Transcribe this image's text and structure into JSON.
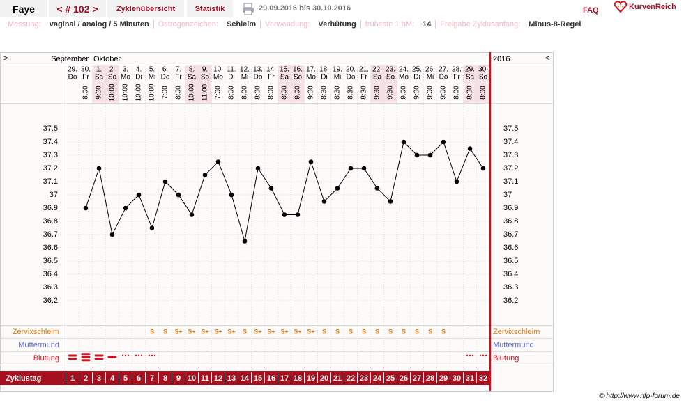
{
  "header": {
    "name": "Faye",
    "cycle": "< # 102 >",
    "nav": [
      "Zyklenübersicht",
      "Statistik"
    ],
    "range": "29.09.2016 bis 30.10.2016",
    "faq": "FAQ",
    "logo": "KurvenReich"
  },
  "info": [
    {
      "label": "Messung:",
      "value": "vaginal / analog / 5 Minuten"
    },
    {
      "label": "Östrogenzeichen:",
      "value": "Schleim"
    },
    {
      "label": "Verwendung:",
      "value": "Verhütung"
    },
    {
      "label": "früheste 1.hM:",
      "value": "14"
    },
    {
      "label": "Freigabe Zyklusanfang:",
      "value": "Minus-8-Regel"
    }
  ],
  "chart_data": {
    "type": "line",
    "months": [
      "September",
      "Oktober"
    ],
    "year": "2016",
    "expand_left": ">",
    "expand_right": "<",
    "categories": [
      "29.",
      "30.",
      "1.",
      "2.",
      "3.",
      "4.",
      "5.",
      "6.",
      "7.",
      "8.",
      "9.",
      "10.",
      "11.",
      "12.",
      "13.",
      "14.",
      "15.",
      "16.",
      "17.",
      "18.",
      "19.",
      "20.",
      "21.",
      "22.",
      "23.",
      "24.",
      "25.",
      "26.",
      "27.",
      "28.",
      "29.",
      "30."
    ],
    "weekdays": [
      "Do",
      "Fr",
      "Sa",
      "So",
      "Mo",
      "Di",
      "Mi",
      "Do",
      "Fr",
      "Sa",
      "So",
      "Mo",
      "Di",
      "Mi",
      "Do",
      "Fr",
      "Sa",
      "So",
      "Mo",
      "Di",
      "Mi",
      "Do",
      "Fr",
      "Sa",
      "So",
      "Mo",
      "Di",
      "Mi",
      "Do",
      "Fr",
      "Sa",
      "So"
    ],
    "highlight_weekdays": [
      "Sa",
      "So"
    ],
    "times": [
      null,
      "8:00",
      "9:00",
      "10:00",
      "10:00",
      "10:00",
      "10:00",
      "7:00",
      "8:00",
      "10:00",
      "11:00",
      "7:00",
      "8:00",
      "8:00",
      "8:00",
      "8:00",
      "8:00",
      "9:00",
      "9:00",
      "8:30",
      "8:30",
      "8:30",
      "8:30",
      "9:30",
      "9:30",
      "9:00",
      "9:00",
      "9:00",
      "9:00",
      "8:00",
      "8:00",
      "8:00"
    ],
    "values": [
      null,
      36.9,
      37.2,
      36.7,
      36.9,
      37.0,
      36.75,
      37.1,
      37.0,
      36.85,
      37.15,
      37.25,
      37.0,
      36.65,
      37.2,
      37.05,
      36.85,
      36.85,
      37.25,
      36.95,
      37.05,
      37.2,
      37.2,
      37.05,
      36.95,
      37.4,
      37.3,
      37.3,
      37.4,
      37.1,
      37.35,
      37.2
    ],
    "color": "#000000",
    "ylim": [
      36.0,
      37.7
    ],
    "yticks": [
      36.2,
      36.3,
      36.4,
      36.5,
      36.6,
      36.7,
      36.8,
      36.9,
      37,
      37.1,
      37.2,
      37.3,
      37.4,
      37.5
    ],
    "grid": true,
    "cervical_mucus": {
      "label": "Zervixschleim",
      "color": "#e07a10",
      "values": [
        null,
        null,
        null,
        null,
        null,
        null,
        "S",
        "S",
        "S+",
        "S+",
        "S+",
        "S+",
        "S+",
        "S",
        "S+",
        "S+",
        "S+",
        "S+",
        "S+",
        "S",
        "S",
        "S",
        "S",
        "S",
        "S",
        "S",
        "S",
        "S",
        "S",
        null,
        null,
        null
      ]
    },
    "cervix": {
      "label": "Muttermund",
      "color": "#5a6fd6"
    },
    "bleeding": {
      "label": "Blutung",
      "color": "#d0101e",
      "values": [
        2,
        3,
        2,
        1,
        0,
        0,
        0,
        null,
        null,
        null,
        null,
        null,
        null,
        null,
        null,
        null,
        null,
        null,
        null,
        null,
        null,
        null,
        null,
        null,
        null,
        null,
        null,
        null,
        null,
        null,
        0,
        0
      ]
    },
    "cycle_day": {
      "label": "Zyklustag",
      "values": [
        1,
        2,
        3,
        4,
        5,
        6,
        7,
        8,
        9,
        10,
        11,
        12,
        13,
        14,
        15,
        16,
        17,
        18,
        19,
        20,
        21,
        22,
        23,
        24,
        25,
        26,
        27,
        28,
        29,
        30,
        31,
        32
      ]
    }
  },
  "footer": "© http://www.nfp-forum.de"
}
